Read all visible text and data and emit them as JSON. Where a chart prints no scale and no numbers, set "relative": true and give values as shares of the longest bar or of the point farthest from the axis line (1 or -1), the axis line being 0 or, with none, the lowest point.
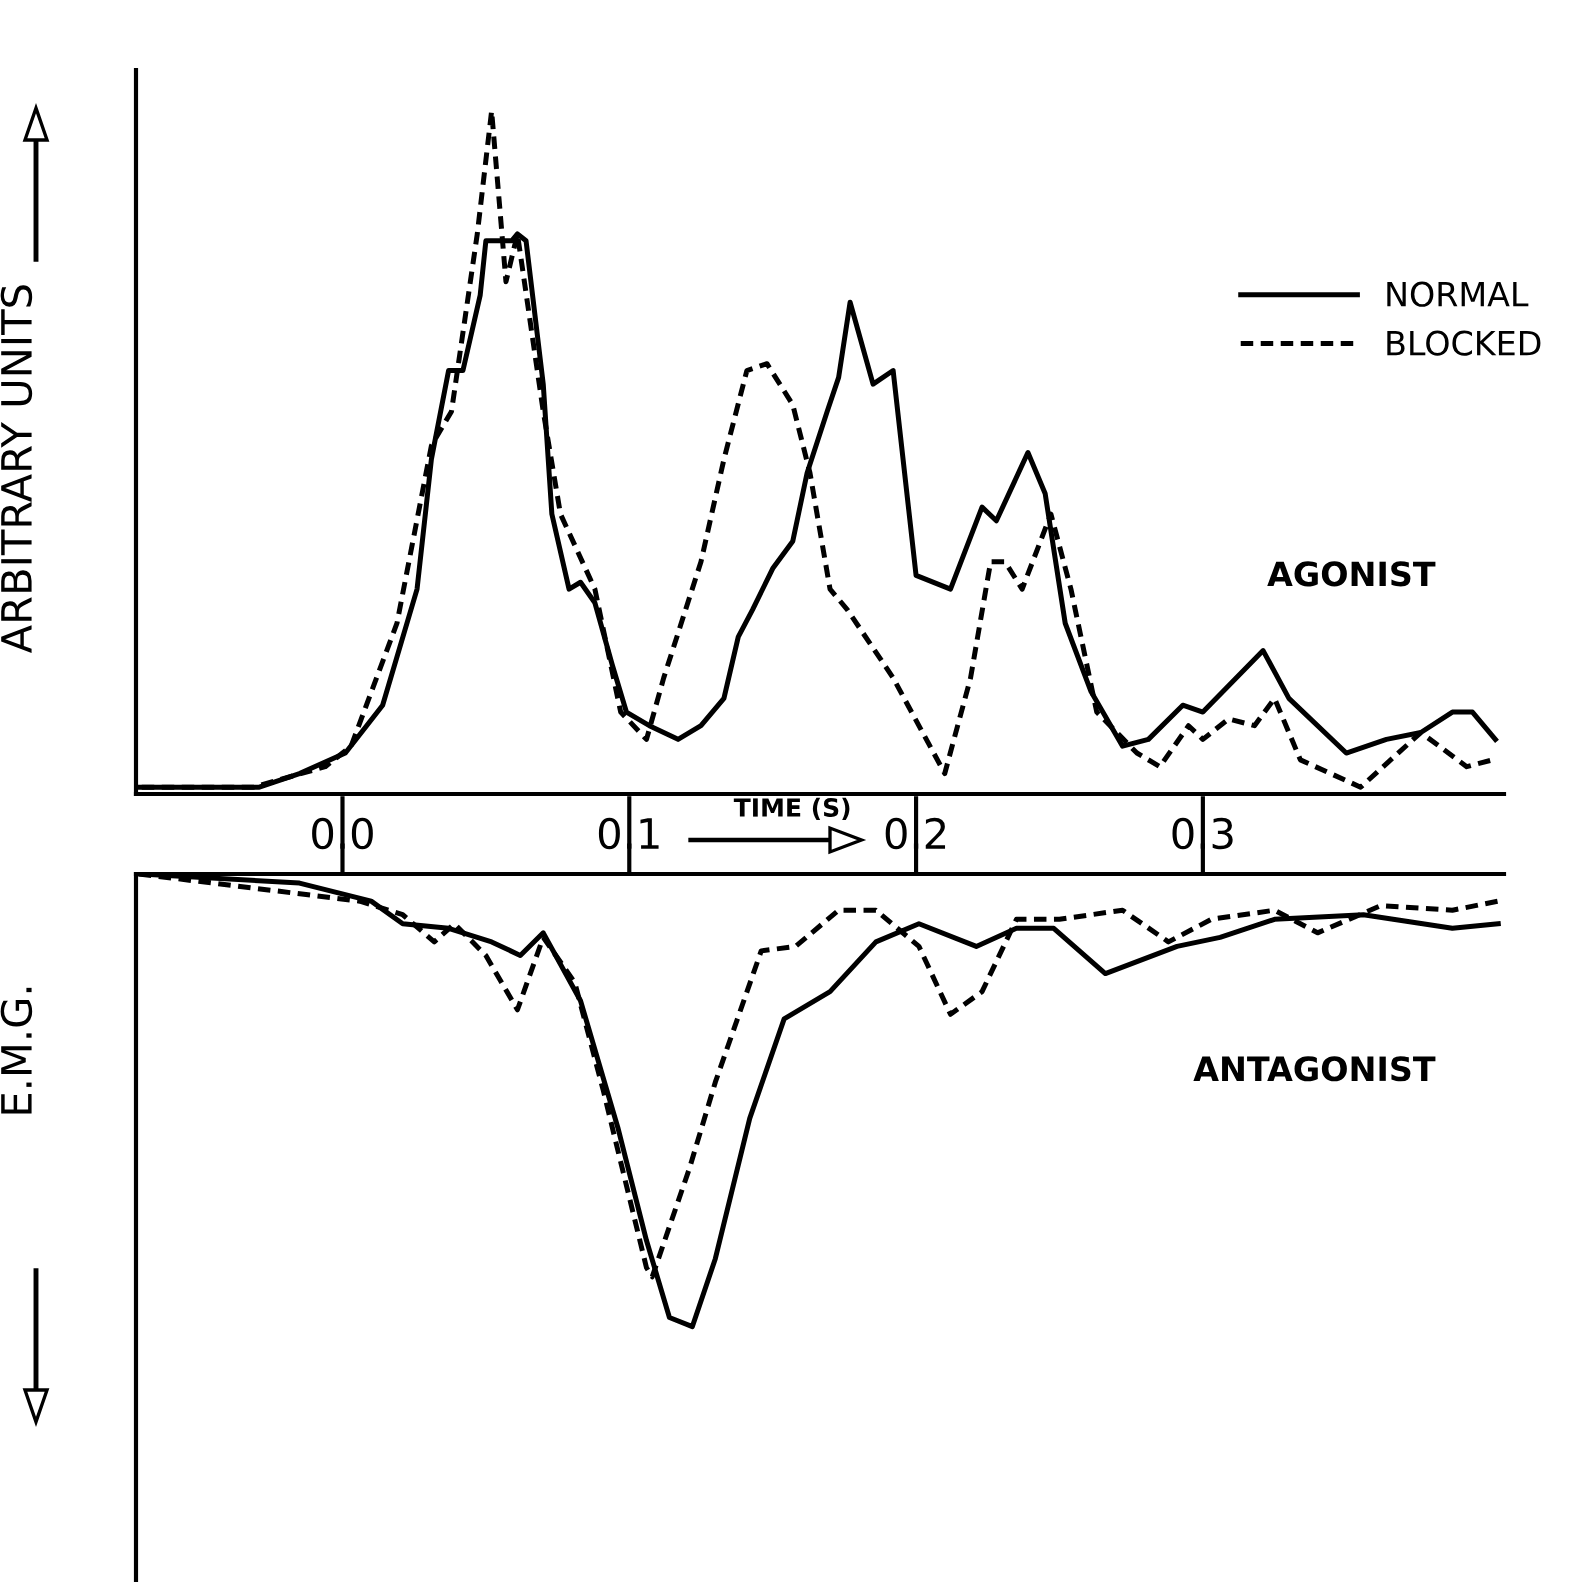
{
  "chart_data": [
    {
      "type": "line",
      "relative": true,
      "xlabel": "TIME (S)",
      "ylabel": "ARBITRARY UNITS",
      "annotations": [
        "AGONIST"
      ],
      "xlim": [
        -0.072,
        0.405
      ],
      "tick_labels": false,
      "legend": "top right",
      "series": [
        {
          "name": "NORMAL",
          "color": "#000000",
          "line_style": "solid",
          "x": [
            -0.072,
            -0.029,
            -0.015,
            0.001,
            0.014,
            0.026,
            0.031,
            0.037,
            0.042,
            0.048,
            0.05,
            0.059,
            0.061,
            0.064,
            0.07,
            0.073,
            0.079,
            0.083,
            0.088,
            0.094,
            0.099,
            0.107,
            0.117,
            0.125,
            0.133,
            0.138,
            0.143,
            0.15,
            0.157,
            0.162,
            0.169,
            0.173,
            0.177,
            0.185,
            0.192,
            0.2,
            0.212,
            0.223,
            0.228,
            0.239,
            0.245,
            0.252,
            0.261,
            0.272,
            0.281,
            0.293,
            0.3,
            0.321,
            0.33,
            0.35,
            0.364,
            0.376,
            0.387,
            0.394,
            0.402
          ],
          "values": [
            0.01,
            0.01,
            0.03,
            0.06,
            0.13,
            0.3,
            0.49,
            0.62,
            0.62,
            0.73,
            0.81,
            0.81,
            0.82,
            0.81,
            0.6,
            0.41,
            0.3,
            0.31,
            0.28,
            0.19,
            0.12,
            0.1,
            0.08,
            0.1,
            0.14,
            0.23,
            0.27,
            0.33,
            0.37,
            0.47,
            0.56,
            0.61,
            0.72,
            0.6,
            0.62,
            0.32,
            0.3,
            0.42,
            0.4,
            0.5,
            0.44,
            0.25,
            0.15,
            0.07,
            0.08,
            0.13,
            0.12,
            0.21,
            0.14,
            0.06,
            0.08,
            0.09,
            0.12,
            0.12,
            0.08
          ]
        },
        {
          "name": "BLOCKED",
          "color": "#000000",
          "line_style": "dashed",
          "x": [
            -0.07,
            -0.031,
            -0.006,
            0.003,
            0.019,
            0.031,
            0.038,
            0.047,
            0.052,
            0.057,
            0.061,
            0.07,
            0.076,
            0.088,
            0.097,
            0.106,
            0.112,
            0.125,
            0.133,
            0.141,
            0.148,
            0.157,
            0.163,
            0.17,
            0.176,
            0.192,
            0.21,
            0.219,
            0.226,
            0.231,
            0.237,
            0.247,
            0.254,
            0.263,
            0.277,
            0.285,
            0.295,
            0.3,
            0.309,
            0.318,
            0.325,
            0.334,
            0.355,
            0.376,
            0.392,
            0.401
          ],
          "values": [
            0.01,
            0.01,
            0.04,
            0.07,
            0.25,
            0.51,
            0.56,
            0.82,
            1.0,
            0.75,
            0.82,
            0.56,
            0.41,
            0.3,
            0.12,
            0.08,
            0.17,
            0.34,
            0.49,
            0.62,
            0.63,
            0.57,
            0.47,
            0.3,
            0.27,
            0.17,
            0.03,
            0.17,
            0.34,
            0.34,
            0.3,
            0.41,
            0.3,
            0.12,
            0.06,
            0.04,
            0.1,
            0.08,
            0.11,
            0.1,
            0.14,
            0.05,
            0.01,
            0.09,
            0.04,
            0.05
          ]
        }
      ]
    },
    {
      "type": "line",
      "relative": true,
      "ylabel": "E.M.G.",
      "annotations": [
        "ANTAGONIST"
      ],
      "xlim": [
        -0.072,
        0.405
      ],
      "xticks": [
        {
          "value": 0,
          "label": "0.0"
        },
        {
          "value": 0.1,
          "label": "0.1"
        },
        {
          "value": 0.2,
          "label": "0.2"
        },
        {
          "value": 0.3,
          "label": "0.3"
        }
      ],
      "tick_labels": "x",
      "series": [
        {
          "color": "#000000",
          "line_style": "solid",
          "x": [
            -0.071,
            -0.015,
            0.01,
            0.021,
            0.037,
            0.052,
            0.062,
            0.07,
            0.083,
            0.096,
            0.106,
            0.114,
            0.122,
            0.13,
            0.142,
            0.154,
            0.17,
            0.186,
            0.201,
            0.221,
            0.235,
            0.248,
            0.266,
            0.291,
            0.306,
            0.325,
            0.356,
            0.387,
            0.403
          ],
          "values": [
            0,
            -0.02,
            -0.06,
            -0.11,
            -0.12,
            -0.15,
            -0.18,
            -0.13,
            -0.28,
            -0.56,
            -0.81,
            -0.98,
            -1,
            -0.85,
            -0.54,
            -0.32,
            -0.26,
            -0.15,
            -0.11,
            -0.16,
            -0.12,
            -0.12,
            -0.22,
            -0.16,
            -0.14,
            -0.1,
            -0.09,
            -0.12,
            -0.11
          ]
        },
        {
          "color": "#000000",
          "line_style": "dashed",
          "x": [
            -0.071,
            0.006,
            0.021,
            0.032,
            0.039,
            0.05,
            0.061,
            0.07,
            0.081,
            0.091,
            0.106,
            0.108,
            0.121,
            0.13,
            0.146,
            0.158,
            0.173,
            0.186,
            0.201,
            0.212,
            0.223,
            0.235,
            0.25,
            0.272,
            0.288,
            0.303,
            0.325,
            0.34,
            0.362,
            0.387,
            0.403
          ],
          "values": [
            0,
            -0.06,
            -0.09,
            -0.15,
            -0.11,
            -0.18,
            -0.3,
            -0.14,
            -0.24,
            -0.48,
            -0.87,
            -0.89,
            -0.65,
            -0.46,
            -0.17,
            -0.16,
            -0.08,
            -0.08,
            -0.16,
            -0.31,
            -0.26,
            -0.1,
            -0.1,
            -0.08,
            -0.15,
            -0.1,
            -0.08,
            -0.13,
            -0.07,
            -0.08,
            -0.06
          ]
        }
      ]
    }
  ]
}
